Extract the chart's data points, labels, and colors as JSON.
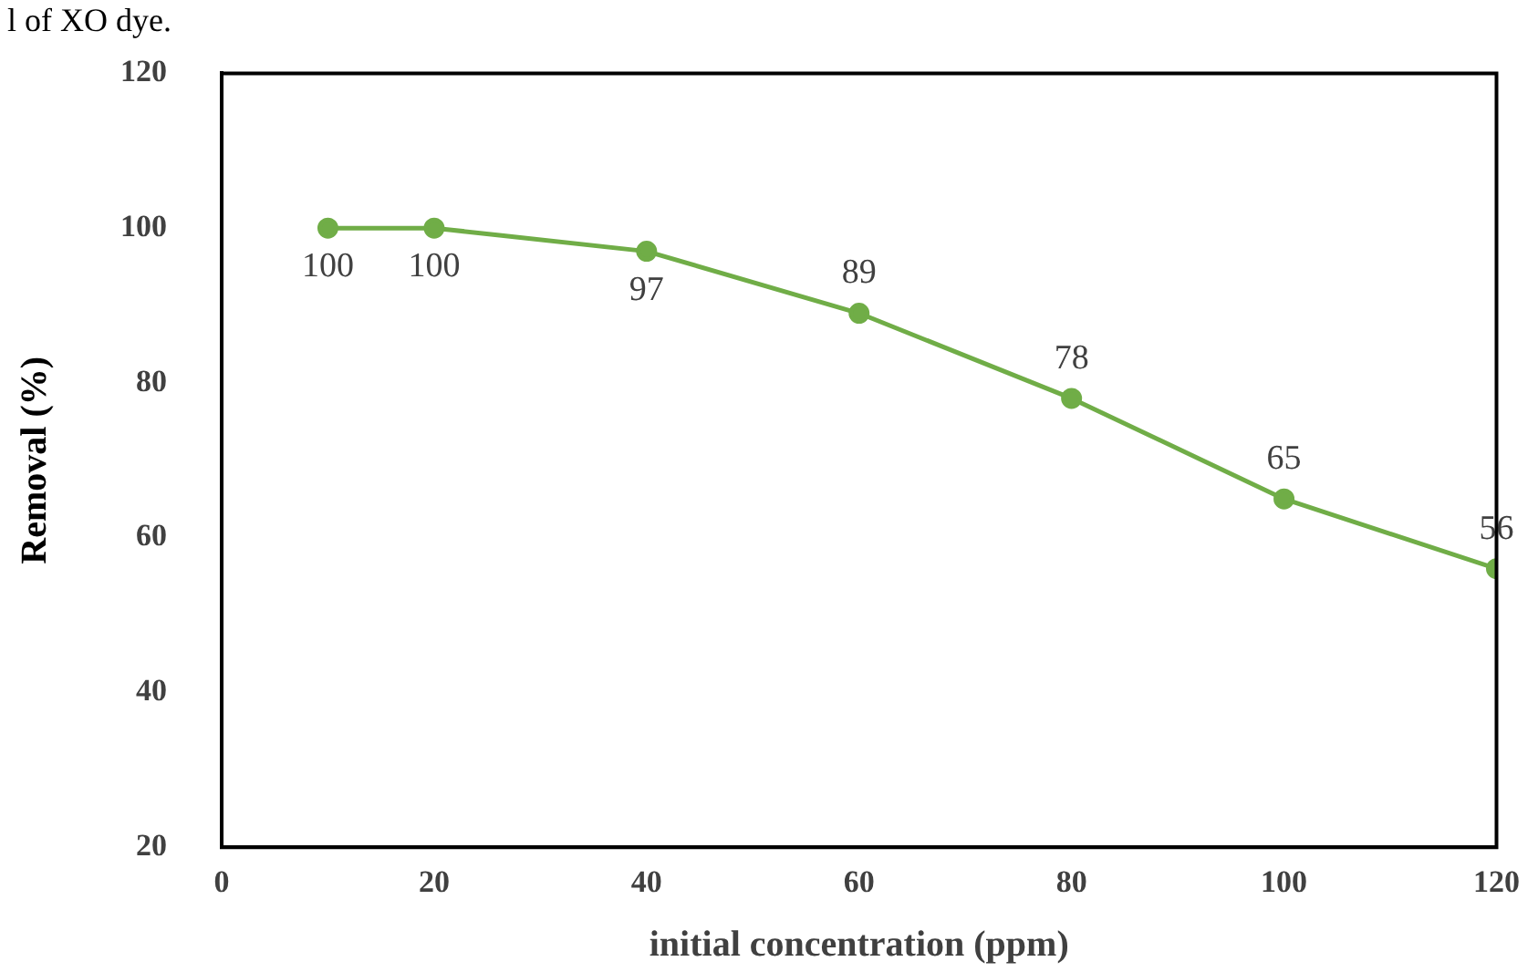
{
  "chart_data": {
    "type": "line",
    "xlabel": "initial concentration (ppm)",
    "ylabel": "Removal (%)",
    "x": [
      10,
      20,
      40,
      60,
      80,
      100,
      120
    ],
    "series": [
      {
        "color": "#70ad47",
        "values": [
          100,
          100,
          97,
          89,
          78,
          65,
          56
        ]
      }
    ],
    "xlim": [
      0,
      120
    ],
    "xticks": [
      0,
      20,
      40,
      60,
      80,
      100,
      120
    ],
    "ylim": [
      20,
      120
    ],
    "yticks": [
      20,
      40,
      60,
      80,
      100,
      120
    ],
    "grid": false,
    "legend": false,
    "marker": "circle",
    "line_style": "solid",
    "data_labels": true,
    "annotations": [
      "l of XO dye."
    ]
  }
}
